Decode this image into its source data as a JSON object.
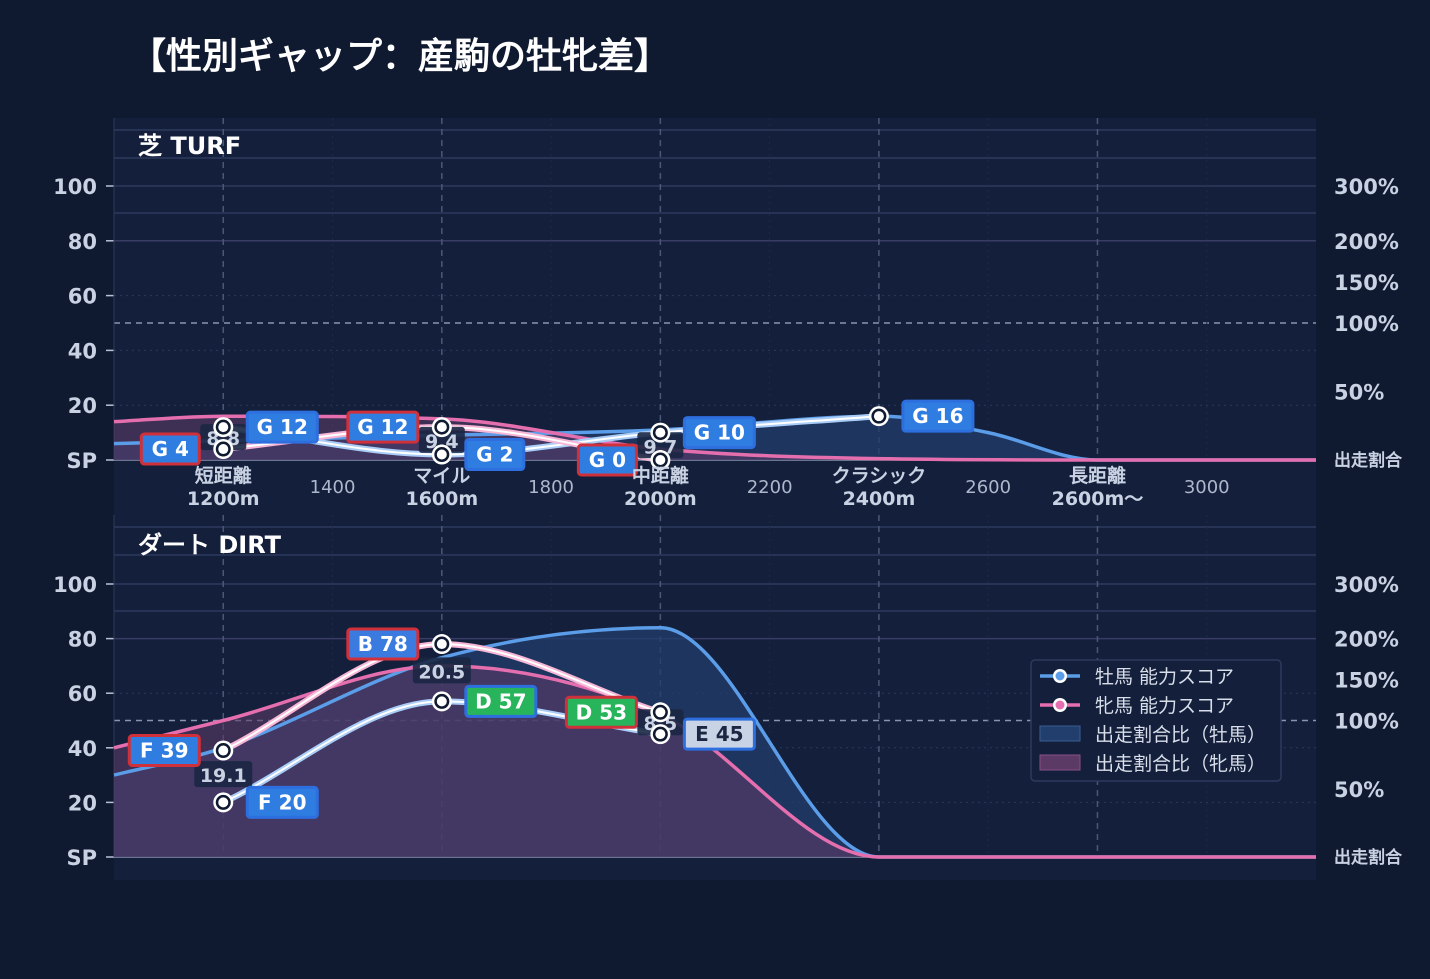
{
  "title": "【性別ギャップ：産駒の牡牝差】",
  "colors": {
    "background": "#0f1a30",
    "panel": "#131f3b",
    "male_line": "#5b9de8",
    "male_inner": "#a9cdf6",
    "female_line": "#e56fae",
    "female_inner": "#f7b6d6",
    "male_area": "#223e6c",
    "female_area": "#5b3a66",
    "grade_b": "#3b7be0",
    "grade_d": "#27b45a",
    "grade_e": "#c9d3e6",
    "grade_f": "#2f7de0",
    "grade_g": "#2f7de0",
    "border_male": "#2e6fe0",
    "border_female": "#d0303a"
  },
  "legend": {
    "items": [
      {
        "label": "牡馬 能力スコア"
      },
      {
        "label": "牝馬 能力スコア"
      },
      {
        "label": "出走割合比（牡馬）"
      },
      {
        "label": "出走割合比（牝馬）"
      }
    ]
  },
  "chart_data": [
    {
      "type": "line",
      "panel_title": "芝 TURF",
      "y_left_ticks": [
        "SP",
        "20",
        "40",
        "60",
        "80",
        "100"
      ],
      "y_right_ticks": [
        "出走割合",
        "50%",
        "100%",
        "150%",
        "200%",
        "300%"
      ],
      "x_range": [
        1000,
        3200
      ],
      "x_ticks": [
        {
          "x": 1200,
          "label": "短距離",
          "sub": "1200m",
          "major": true
        },
        {
          "x": 1400,
          "label": "1400",
          "major": false
        },
        {
          "x": 1600,
          "label": "マイル",
          "sub": "1600m",
          "major": true
        },
        {
          "x": 1800,
          "label": "1800",
          "major": false
        },
        {
          "x": 2000,
          "label": "中距離",
          "sub": "2000m",
          "major": true
        },
        {
          "x": 2200,
          "label": "2200",
          "major": false
        },
        {
          "x": 2400,
          "label": "クラシック",
          "sub": "2400m",
          "major": true
        },
        {
          "x": 2600,
          "label": "2600",
          "major": false
        },
        {
          "x": 2800,
          "label": "長距離",
          "sub": "2600m〜",
          "major": true
        },
        {
          "x": 3000,
          "label": "3000",
          "major": false
        }
      ],
      "male_score": [
        {
          "x": 1200,
          "y": 12,
          "grade": "G 12"
        },
        {
          "x": 1600,
          "y": 2,
          "grade": "G 2"
        },
        {
          "x": 2000,
          "y": 10,
          "grade": "G 10"
        },
        {
          "x": 2400,
          "y": 16,
          "grade": "G 16"
        }
      ],
      "female_score": [
        {
          "x": 1200,
          "y": 4,
          "grade": "G 4"
        },
        {
          "x": 1600,
          "y": 12,
          "grade": "G 12"
        },
        {
          "x": 2000,
          "y": 0,
          "grade": "G 0"
        }
      ],
      "gap_labels": [
        {
          "x": 1200,
          "text": "8.8"
        },
        {
          "x": 1600,
          "text": "9.4"
        },
        {
          "x": 2000,
          "text": "9.7"
        }
      ],
      "male_ratio": [
        [
          1000,
          6
        ],
        [
          1200,
          7
        ],
        [
          1600,
          9
        ],
        [
          2000,
          11
        ],
        [
          2400,
          16
        ],
        [
          2600,
          10
        ],
        [
          2800,
          0
        ],
        [
          3200,
          0
        ]
      ],
      "female_ratio": [
        [
          1000,
          14
        ],
        [
          1200,
          16
        ],
        [
          1600,
          15
        ],
        [
          2000,
          4
        ],
        [
          2400,
          0.5
        ],
        [
          2800,
          0
        ],
        [
          3200,
          0
        ]
      ]
    },
    {
      "type": "line",
      "panel_title": "ダート DIRT",
      "y_left_ticks": [
        "SP",
        "20",
        "40",
        "60",
        "80",
        "100"
      ],
      "y_right_ticks": [
        "出走割合",
        "50%",
        "100%",
        "150%",
        "200%",
        "300%"
      ],
      "x_range": [
        1000,
        3200
      ],
      "male_score": [
        {
          "x": 1200,
          "y": 20,
          "grade": "F 20"
        },
        {
          "x": 1600,
          "y": 57,
          "grade": "D 57"
        },
        {
          "x": 2000,
          "y": 45,
          "grade": "E 45"
        }
      ],
      "female_score": [
        {
          "x": 1200,
          "y": 39,
          "grade": "F 39"
        },
        {
          "x": 1600,
          "y": 78,
          "grade": "B 78"
        },
        {
          "x": 2000,
          "y": 53,
          "grade": "D 53"
        }
      ],
      "gap_labels": [
        {
          "x": 1200,
          "text": "19.1"
        },
        {
          "x": 1600,
          "text": "20.5"
        },
        {
          "x": 2000,
          "text": "8.5"
        }
      ],
      "male_ratio": [
        [
          1000,
          30
        ],
        [
          1200,
          40
        ],
        [
          1600,
          73
        ],
        [
          2000,
          84
        ],
        [
          2400,
          0
        ],
        [
          3200,
          0
        ]
      ],
      "female_ratio": [
        [
          1000,
          40
        ],
        [
          1200,
          50
        ],
        [
          1600,
          70
        ],
        [
          2000,
          52
        ],
        [
          2400,
          0
        ],
        [
          3200,
          0
        ]
      ]
    }
  ]
}
